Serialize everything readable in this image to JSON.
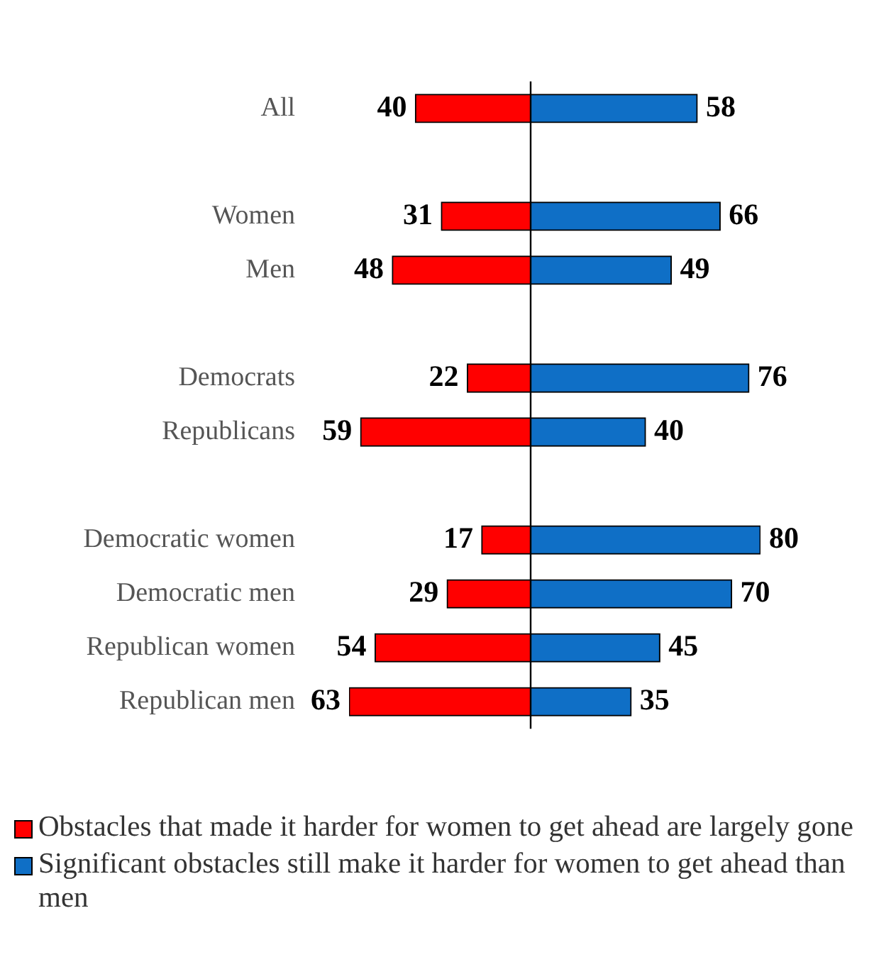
{
  "chart_data": [
    {
      "type": "bar",
      "orientation": "horizontal",
      "grid": false,
      "legend": "bottom",
      "data_labels": true,
      "xlim": [
        63,
        0
      ],
      "categories": [
        "All",
        null,
        "Women",
        "Men",
        null,
        "Democrats",
        "Republicans",
        null,
        "Democratic women",
        "Democratic men",
        "Republican women",
        "Republican men"
      ],
      "series": [
        {
          "name": "Obstacles that made it harder for women to get ahead are largely gone",
          "color": "#ff0000",
          "values": [
            40,
            null,
            31,
            48,
            null,
            22,
            59,
            null,
            17,
            29,
            54,
            63
          ]
        }
      ]
    },
    {
      "type": "bar",
      "orientation": "horizontal",
      "grid": false,
      "legend": "bottom",
      "data_labels": true,
      "tick_labels": false,
      "series": [
        {
          "name": "Significant obstacles still make it harder for women to get ahead than men",
          "color": "#0f6fc6",
          "values": [
            58,
            null,
            66,
            49,
            null,
            76,
            40,
            null,
            80,
            70,
            45,
            35
          ]
        }
      ]
    }
  ]
}
